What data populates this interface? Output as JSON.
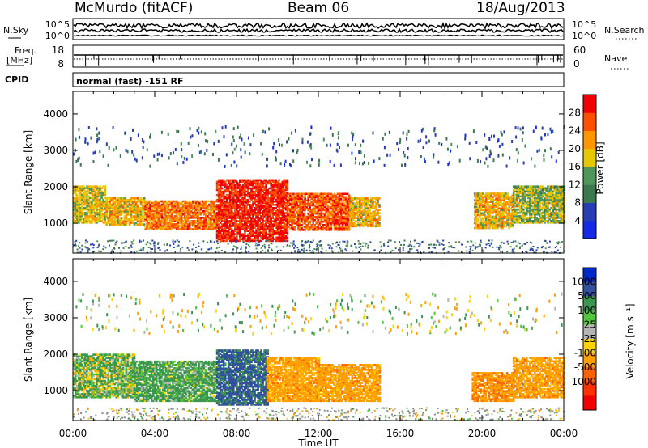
{
  "header": {
    "station": "McMurdo (fitACF)",
    "beam": "Beam 06",
    "date": "18/Aug/2013"
  },
  "noise_panel": {
    "left_label": "N.Sky",
    "right_label": "N.Search",
    "left_ticks": [
      "10^5",
      "10^0"
    ],
    "right_ticks": [
      "10^5",
      "10^0"
    ]
  },
  "freq_panel": {
    "left_label_1": "Freq.",
    "left_label_2": "[MHz]",
    "left_ticks": [
      "18",
      "8"
    ],
    "right_ticks": [
      "60",
      "0"
    ],
    "right_label": "Nave"
  },
  "cpid_panel": {
    "label": "CPID",
    "text": "normal (fast) -151 RF"
  },
  "colors": {
    "scale": [
      "#1428e6",
      "#283cb4",
      "#3c7850",
      "#50965a",
      "#e6c800",
      "#ff9600",
      "#ff5000",
      "#f00000"
    ],
    "velocity": [
      "#0028c8",
      "#3250a0",
      "#3c9650",
      "#50c83c",
      "#b4b4b4",
      "#ffd200",
      "#ffa000",
      "#ff6400",
      "#ff3200",
      "#f00000"
    ],
    "ground_scatter": "#8c8c8c"
  },
  "chart_data": [
    {
      "type": "heatmap",
      "panel": "power",
      "ylabel": "Slant Range [km]",
      "xlabel": "Time UT",
      "x_ticks": [
        "00:00",
        "04:00",
        "08:00",
        "12:00",
        "16:00",
        "20:00",
        "00:00"
      ],
      "y_ticks": [
        "1000",
        "2000",
        "3000",
        "4000"
      ],
      "ylim": [
        180,
        4620
      ],
      "colorbar_label": "Power [dB]",
      "colorbar_ticks": [
        "4",
        "8",
        "12",
        "16",
        "20",
        "24",
        "28"
      ],
      "colorbar_range": [
        0,
        32
      ],
      "scatter_regions": [
        {
          "t0": 0.0,
          "t1": 1.6,
          "r0": 1000,
          "r1": 2000,
          "value": 18
        },
        {
          "t0": 1.6,
          "t1": 3.5,
          "r0": 950,
          "r1": 1700,
          "value": 20
        },
        {
          "t0": 3.5,
          "t1": 7.0,
          "r0": 820,
          "r1": 1600,
          "value": 24
        },
        {
          "t0": 7.0,
          "t1": 10.5,
          "r0": 500,
          "r1": 2200,
          "value": 29
        },
        {
          "t0": 10.5,
          "t1": 13.5,
          "r0": 800,
          "r1": 1800,
          "value": 26
        },
        {
          "t0": 13.5,
          "t1": 15.0,
          "r0": 900,
          "r1": 1700,
          "value": 20
        },
        {
          "t0": 19.6,
          "t1": 21.5,
          "r0": 850,
          "r1": 1800,
          "value": 20
        },
        {
          "t0": 21.5,
          "t1": 24.0,
          "r0": 1000,
          "r1": 2000,
          "value": 16
        }
      ]
    },
    {
      "type": "heatmap",
      "panel": "velocity",
      "ylabel": "Slant Range [km]",
      "xlabel": "Time UT",
      "x_ticks": [
        "00:00",
        "04:00",
        "08:00",
        "12:00",
        "16:00",
        "20:00",
        "00:00"
      ],
      "y_ticks": [
        "1000",
        "2000",
        "3000",
        "4000"
      ],
      "ylim": [
        180,
        4620
      ],
      "colorbar_label": "Velocity [m s⁻¹]",
      "colorbar_ticks": [
        "1000",
        "500",
        "100",
        "25",
        "-25",
        "-100",
        "-500",
        "-1000"
      ],
      "scatter_regions": [
        {
          "t0": 0.0,
          "t1": 3.0,
          "r0": 800,
          "r1": 2000,
          "value": 100
        },
        {
          "t0": 3.0,
          "t1": 7.0,
          "r0": 700,
          "r1": 1800,
          "value": 200
        },
        {
          "t0": 7.0,
          "t1": 9.5,
          "r0": 600,
          "r1": 2100,
          "value": 600
        },
        {
          "t0": 9.5,
          "t1": 12.0,
          "r0": 700,
          "r1": 1900,
          "value": -300
        },
        {
          "t0": 12.0,
          "t1": 15.0,
          "r0": 700,
          "r1": 1700,
          "value": -300
        },
        {
          "t0": 19.5,
          "t1": 21.5,
          "r0": 700,
          "r1": 1500,
          "value": -400
        },
        {
          "t0": 21.5,
          "t1": 24.0,
          "r0": 800,
          "r1": 1900,
          "value": -300
        }
      ]
    }
  ]
}
